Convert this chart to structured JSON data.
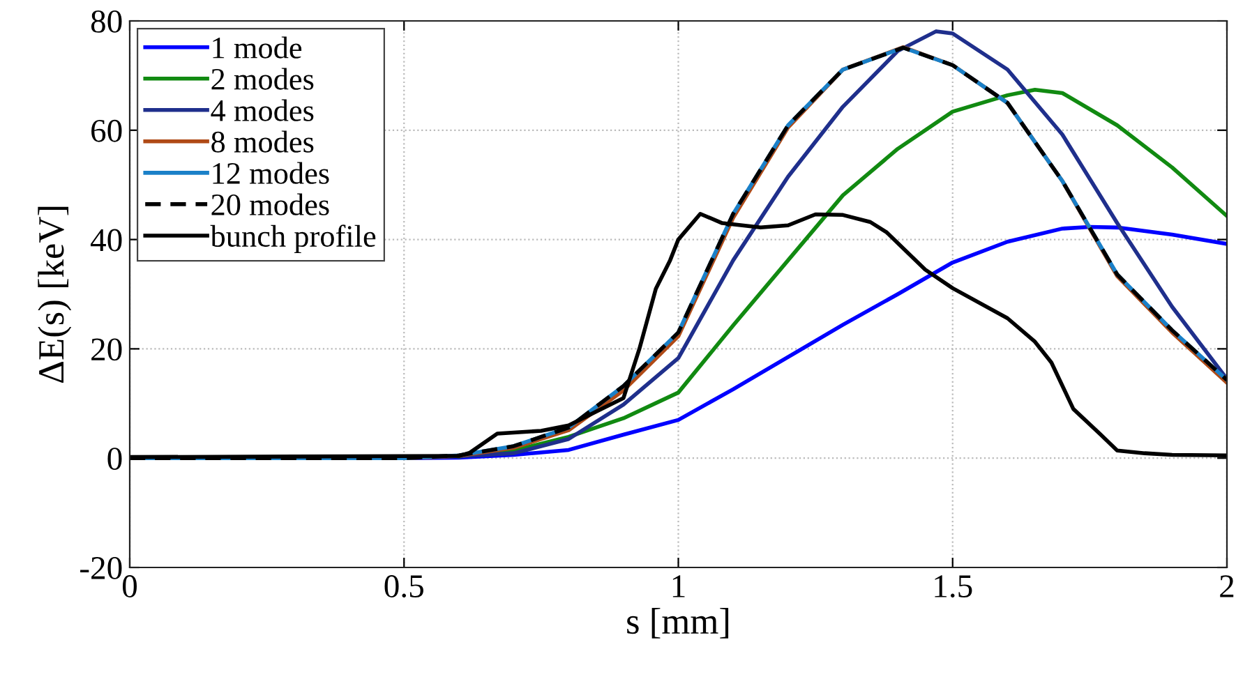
{
  "chart_data": {
    "type": "line",
    "xlabel": "s [mm]",
    "ylabel": "ΔE(s) [keV]",
    "xlim": [
      0,
      2
    ],
    "ylim": [
      -20,
      80
    ],
    "xticks": [
      0,
      {
        "value": 0.5,
        "label": "0.5"
      },
      1,
      {
        "value": 1.5,
        "label": "1.5"
      },
      2
    ],
    "yticks": [
      -20,
      0,
      20,
      40,
      60,
      80
    ],
    "grid": true,
    "legend": "top left",
    "marker": "none",
    "series": [
      {
        "name": "1 mode",
        "color": "#0000ff",
        "x": [
          0,
          0.5,
          0.6,
          0.7,
          0.8,
          0.9,
          1.0,
          1.1,
          1.2,
          1.3,
          1.4,
          1.5,
          1.6,
          1.7,
          1.75,
          1.8,
          1.9,
          2.0
        ],
        "values": [
          0,
          0,
          0.1,
          0.6,
          1.5,
          4.3,
          7,
          12.6,
          18.5,
          24.4,
          30,
          35.8,
          39.6,
          42,
          42.3,
          42.2,
          40.9,
          39.2
        ]
      },
      {
        "name": "2 modes",
        "color": "#118a11",
        "x": [
          0.6,
          0.7,
          0.8,
          0.9,
          1.0,
          1.1,
          1.2,
          1.3,
          1.4,
          1.5,
          1.6,
          1.65,
          1.7,
          1.8,
          1.9,
          2.0
        ],
        "values": [
          0.3,
          1.4,
          3.9,
          7.3,
          12,
          24.3,
          36.2,
          48.1,
          56.6,
          63.4,
          66.4,
          67.4,
          66.8,
          60.9,
          53.2,
          44.3
        ]
      },
      {
        "name": "4 modes",
        "color": "#1f2f8c",
        "x": [
          0,
          0.5,
          0.6,
          0.7,
          0.8,
          0.9,
          1.0,
          1.1,
          1.2,
          1.3,
          1.4,
          1.47,
          1.5,
          1.6,
          1.7,
          1.8,
          1.9,
          2.0
        ],
        "values": [
          0,
          0,
          0.3,
          0.9,
          3.5,
          9.8,
          18.3,
          36.2,
          51.5,
          64.3,
          74.5,
          78.1,
          77.7,
          71.1,
          59.2,
          43,
          27.7,
          14.5
        ]
      },
      {
        "name": "8 modes",
        "color": "#b04a16",
        "x": [
          0,
          0.5,
          0.6,
          0.7,
          0.8,
          0.9,
          1.0,
          1.1,
          1.2,
          1.3,
          1.41,
          1.5,
          1.6,
          1.7,
          1.8,
          1.9,
          2.0
        ],
        "values": [
          0,
          0,
          0.4,
          1.9,
          5.1,
          12.4,
          22.3,
          44,
          60.5,
          71.1,
          75.2,
          71.9,
          65,
          50.7,
          33.3,
          23,
          13.8
        ]
      },
      {
        "name": "12 modes",
        "color": "#1a80c8",
        "x": [
          0,
          0.5,
          0.6,
          0.7,
          0.8,
          0.9,
          1.0,
          1.1,
          1.2,
          1.3,
          1.41,
          1.5,
          1.6,
          1.7,
          1.8,
          1.9,
          2.0
        ],
        "values": [
          0,
          0,
          0.5,
          2.2,
          5.6,
          13.2,
          23,
          44.7,
          60.9,
          71.1,
          75.1,
          71.9,
          65,
          50.7,
          33.6,
          23.4,
          14.3
        ]
      },
      {
        "name": "20 modes",
        "color": "#000000",
        "line_style": "dashed",
        "x": [
          0,
          0.5,
          0.6,
          0.7,
          0.8,
          0.9,
          1.0,
          1.1,
          1.2,
          1.3,
          1.41,
          1.5,
          1.6,
          1.7,
          1.8,
          1.9,
          2.0
        ],
        "values": [
          0,
          0,
          0.5,
          2.2,
          5.6,
          13.2,
          23,
          44.7,
          60.9,
          71.1,
          75.1,
          71.9,
          65,
          50.7,
          33.6,
          23.4,
          14.3
        ]
      },
      {
        "name": "bunch profile",
        "color": "#000000",
        "x": [
          0,
          0.3,
          0.6,
          0.62,
          0.67,
          0.75,
          0.8,
          0.85,
          0.9,
          0.929,
          0.959,
          0.985,
          1.0,
          1.04,
          1.08,
          1.15,
          1.2,
          1.25,
          1.3,
          1.35,
          1.38,
          1.45,
          1.5,
          1.6,
          1.65,
          1.68,
          1.72,
          1.77,
          1.8,
          1.85,
          1.9,
          2.0
        ],
        "values": [
          0.2,
          0.3,
          0.4,
          1,
          4.5,
          5,
          6,
          8.5,
          11,
          20,
          31,
          36.2,
          40,
          44.7,
          43,
          42.2,
          42.6,
          44.6,
          44.5,
          43.2,
          41.3,
          34.5,
          31.1,
          25.6,
          21.3,
          17.5,
          9,
          4.3,
          1.4,
          0.9,
          0.6,
          0.5
        ]
      }
    ]
  }
}
